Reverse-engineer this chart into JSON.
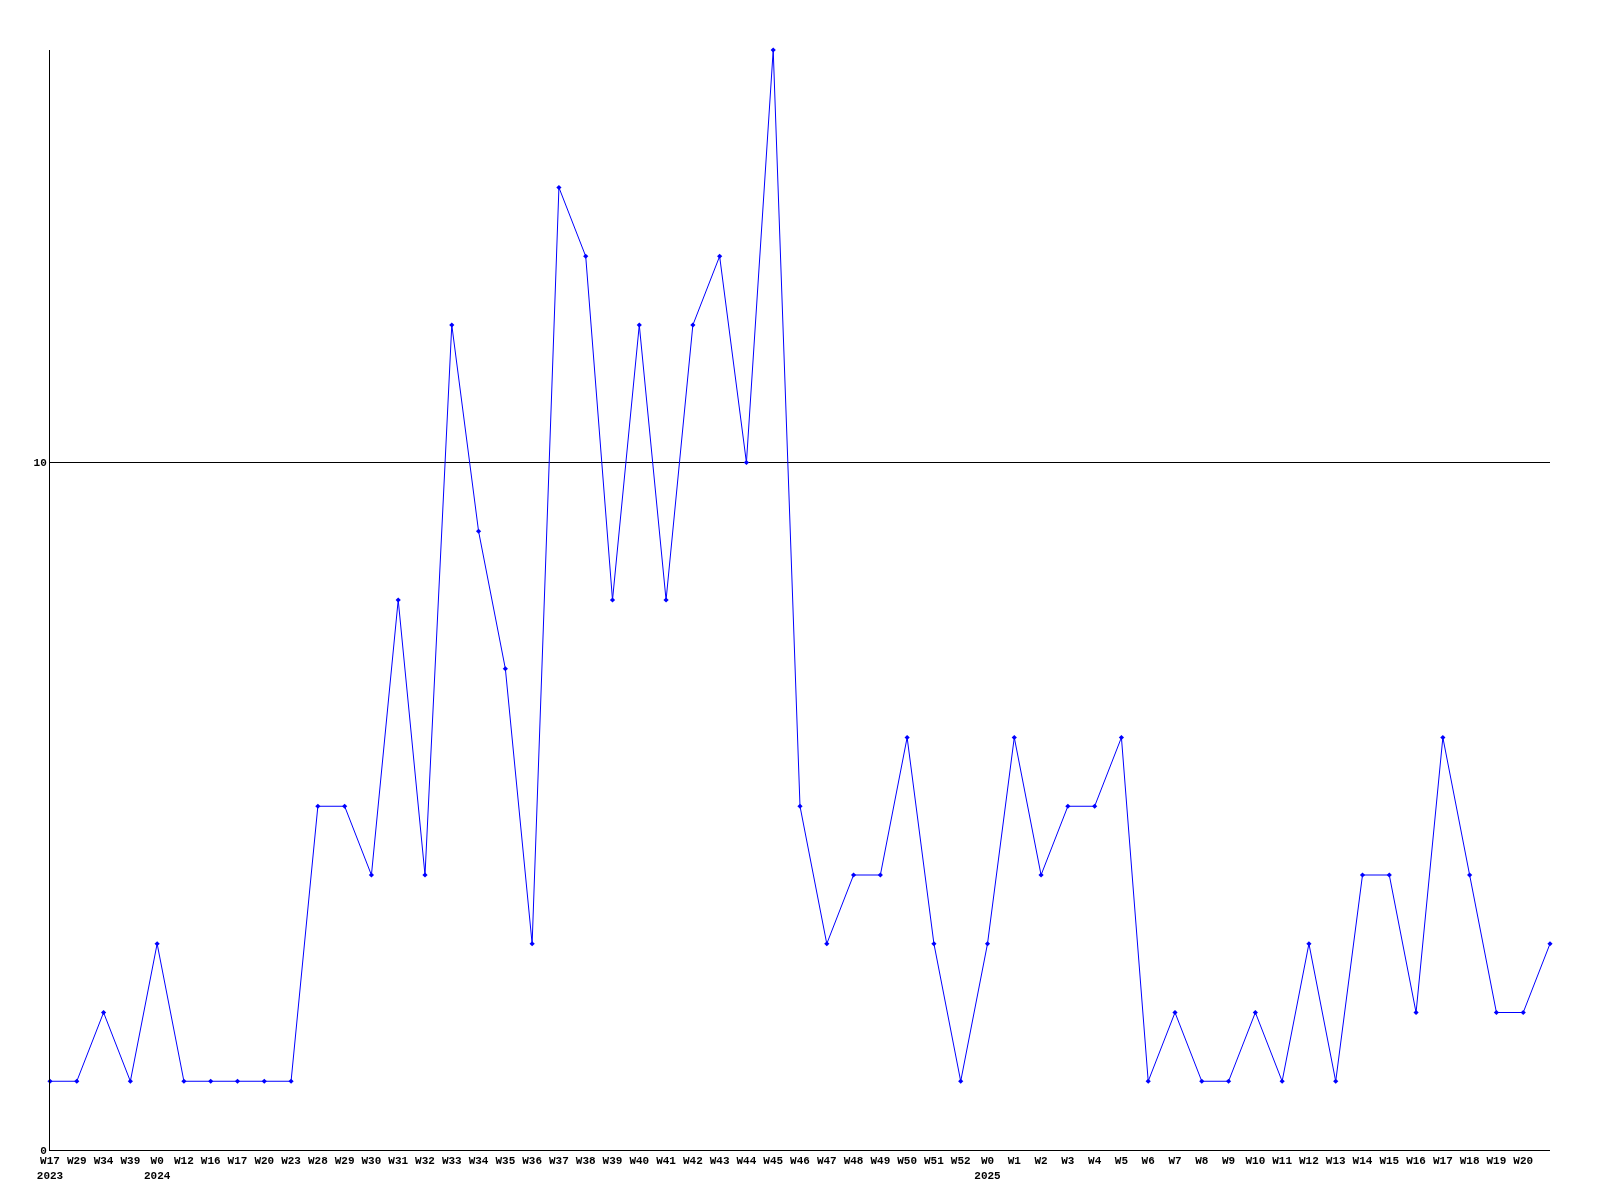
{
  "chart_data": {
    "type": "line",
    "categories": [
      "W17\n2023",
      "W29",
      "W34",
      "W39",
      "W0\n2024",
      "W12",
      "W16",
      "W17",
      "W20",
      "W23",
      "W28",
      "W29",
      "W30",
      "W31",
      "W32",
      "W33",
      "W34",
      "W35",
      "W36",
      "W37",
      "W38",
      "W39",
      "W40",
      "W41",
      "W42",
      "W43",
      "W44",
      "W45",
      "W46",
      "W47",
      "W48",
      "W49",
      "W50",
      "W51",
      "W52",
      "W0\n2025",
      "W1",
      "W2",
      "W3",
      "W4",
      "W5",
      "W6",
      "W7",
      "W8",
      "W9",
      "W10",
      "W11",
      "W12",
      "W13",
      "W14",
      "W15",
      "W16",
      "W17",
      "W18",
      "W19",
      "W20",
      null
    ],
    "series": [
      {
        "color": "#0000ff",
        "values": [
          1,
          1,
          2,
          1,
          3,
          1,
          1,
          1,
          1,
          1,
          5,
          5,
          4,
          8,
          4,
          12,
          9,
          7,
          3,
          14,
          13,
          8,
          12,
          8,
          12,
          13,
          10,
          16,
          5,
          3,
          4,
          4,
          6,
          3,
          1,
          3,
          6,
          4,
          5,
          5,
          6,
          1,
          2,
          1,
          1,
          2,
          1,
          3,
          1,
          4,
          4,
          2,
          6,
          4,
          2,
          2,
          3
        ]
      }
    ],
    "ylim": [
      0,
      16
    ],
    "yticks": [
      0,
      10
    ],
    "grid": "y",
    "marker": "diamond",
    "line_style": "solid"
  }
}
